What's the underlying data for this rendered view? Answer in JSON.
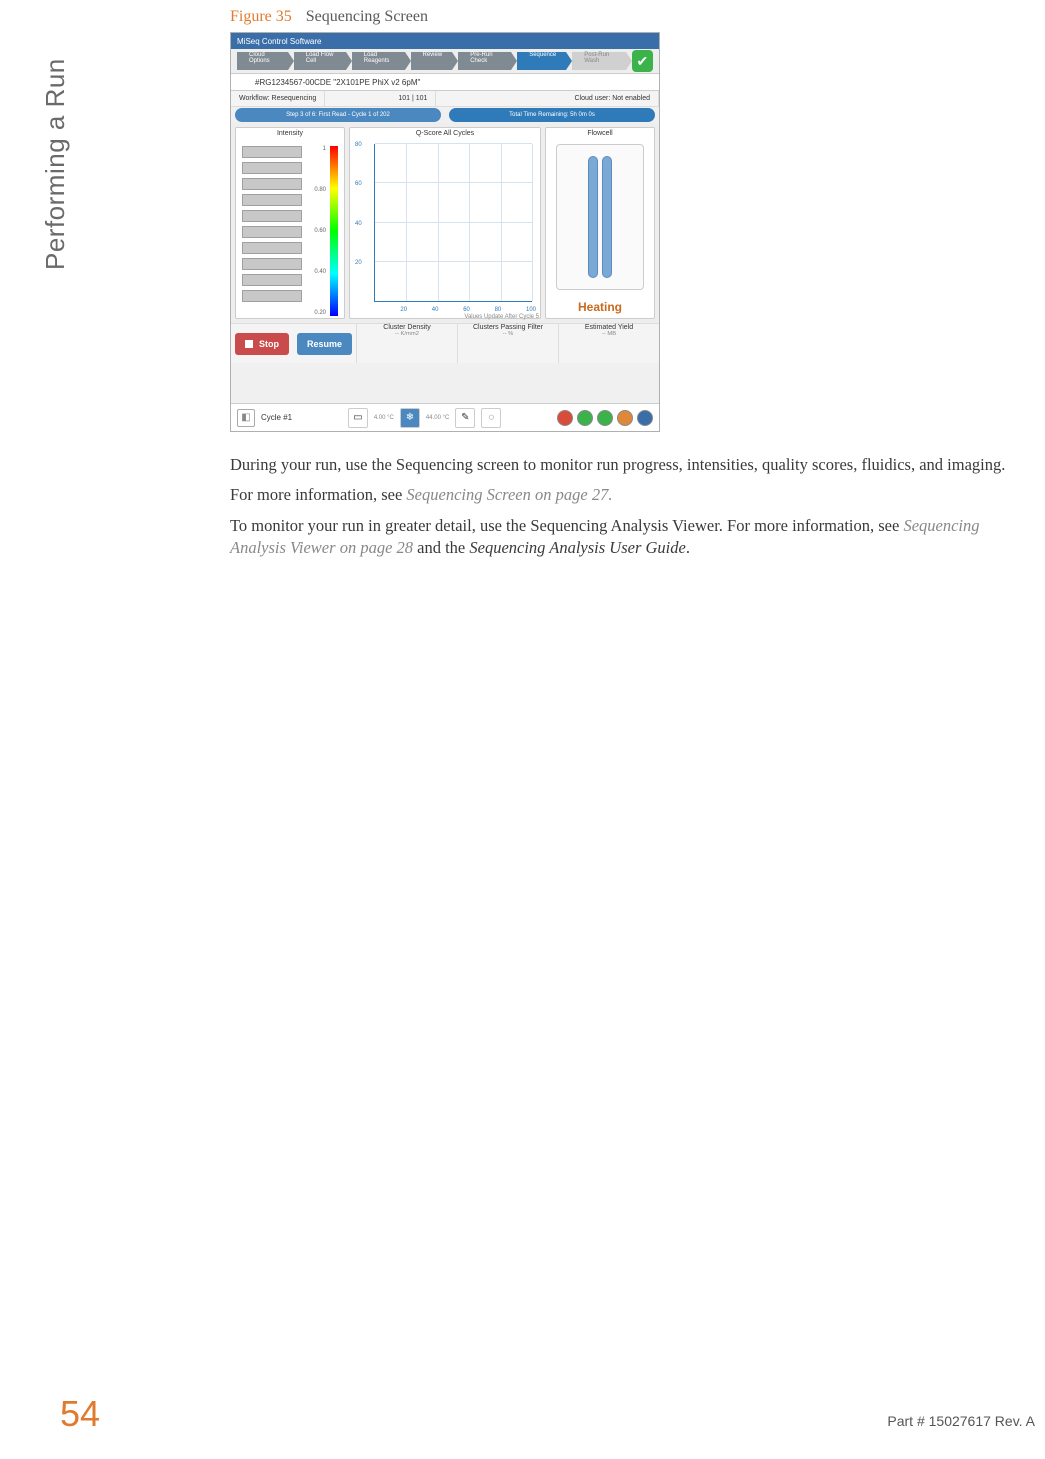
{
  "side_label": "Performing a Run",
  "figure": {
    "number": "Figure 35",
    "title": "Sequencing Screen"
  },
  "screenshot": {
    "window_title": "MiSeq Control Software",
    "breadcrumbs": [
      {
        "label": "Cloud Options",
        "state": "normal"
      },
      {
        "label": "Load Flow Cell",
        "state": "normal"
      },
      {
        "label": "Load Reagents",
        "state": "normal"
      },
      {
        "label": "Review",
        "state": "normal"
      },
      {
        "label": "Pre-Run Check",
        "state": "normal"
      },
      {
        "label": "Sequence",
        "state": "active"
      },
      {
        "label": "Post-Run Wash",
        "state": "disabled"
      }
    ],
    "check_ok": true,
    "run_id": "#RG1234567-00CDE \"2X101PE PhiX v2 6pM\"",
    "info_row": {
      "workflow": "Workflow: Resequencing",
      "cycles": "101 | 101",
      "cloud": "Cloud user: Not enabled"
    },
    "progress_row": {
      "step": "Step 3 of 6: First Read - Cycle 1 of 202",
      "time": "Total Time Remaining: 5h 0m 0s"
    },
    "intensity_panel": {
      "title": "Intensity",
      "bar_count": 10,
      "bar_color": "#c8c8c8",
      "bar_border": "#a0a0a0",
      "scale_ticks": [
        "1",
        "0.80",
        "0.60",
        "0.40",
        "0.20"
      ],
      "gradient": [
        "#ff0000",
        "#ffff00",
        "#00ff00",
        "#00ffff",
        "#0000ff"
      ]
    },
    "qscore_panel": {
      "title": "Q-Score All Cycles",
      "y_ticks": [
        20,
        40,
        60,
        80
      ],
      "x_ticks": [
        20,
        40,
        60,
        80,
        100
      ],
      "axis_color": "#2f7ab8",
      "grid_color": "#d6e2ef"
    },
    "flowcell_panel": {
      "title": "Flowcell",
      "lane_count": 2,
      "lane_color": "#7aa9d6",
      "lane_border": "#5b8bc0",
      "status": "Heating",
      "status_color": "#c96a1e"
    },
    "values_note": "Values Update After Cycle 5",
    "buttons": {
      "stop": "Stop",
      "resume": "Resume"
    },
    "metrics": [
      {
        "label": "Cluster Density",
        "value": "-- K/mm2"
      },
      {
        "label": "Clusters Passing Filter",
        "value": "-- %"
      },
      {
        "label": "Estimated Yield",
        "value": "-- MB"
      }
    ],
    "statusbar": {
      "cycle": "Cycle #1",
      "mid_icons": [
        {
          "name": "flowcell-mini-icon",
          "glyph": "▭",
          "bg": "#ffffff"
        },
        {
          "name": "chiller-icon",
          "glyph": "❄",
          "bg": "#4a88bf"
        },
        {
          "name": "pen-icon",
          "glyph": "✎",
          "bg": "#ffffff"
        },
        {
          "name": "globe-icon",
          "glyph": "◌",
          "bg": "#ffffff"
        }
      ],
      "temps": [
        "4.00 °C",
        "44.00 °C"
      ],
      "dot_colors": [
        "#d94b3a",
        "#3bb34a",
        "#3bb34a",
        "#e0883a",
        "#3a6ea8"
      ]
    }
  },
  "paragraphs": {
    "p1": "During your run, use the Sequencing screen to monitor run progress, intensities, quality scores, fluidics, and imaging.",
    "p2_pre": "For more information, see ",
    "p2_xref": "Sequencing Screen",
    "p2_post": " on page 27.",
    "p3_pre": "To monitor your run in greater detail, use the Sequencing Analysis Viewer. For more information, see ",
    "p3_xref": "Sequencing Analysis Viewer",
    "p3_mid": " on page 28",
    "p3_and": " and the ",
    "p3_guide": "Sequencing Analysis User Guide",
    "p3_end": "."
  },
  "page_number": "54",
  "part_number": "Part # 15027617 Rev. A",
  "colors": {
    "accent_orange": "#e07a2e",
    "body_text": "#3a3a3a",
    "muted_text": "#888888",
    "titlebar": "#3a6ea8",
    "crumb_active": "#2f7ab8",
    "btn_stop": "#c94b4b",
    "btn_resume": "#4a88bf"
  }
}
